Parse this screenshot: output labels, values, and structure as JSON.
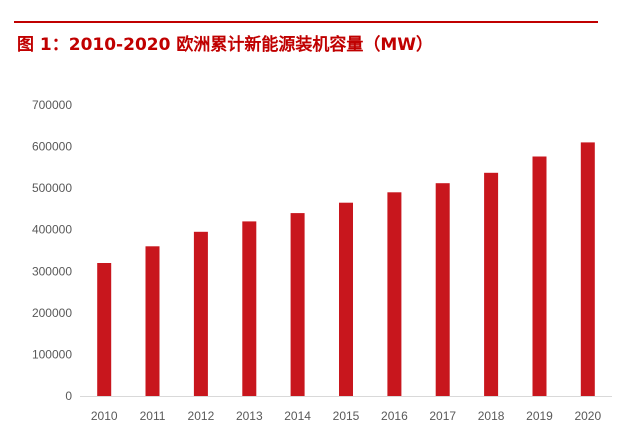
{
  "header": {
    "title": "图 1：2010-2020 欧洲累计新能源装机容量（MW）"
  },
  "colors": {
    "accent": "#c00000",
    "bar": "#c8161d",
    "axis": "#d9d9d9",
    "tick_text": "#595959"
  },
  "chart_data": {
    "type": "bar",
    "title": "图 1：2010-2020 欧洲累计新能源装机容量（MW）",
    "xlabel": "",
    "ylabel": "",
    "categories": [
      "2010",
      "2011",
      "2012",
      "2013",
      "2014",
      "2015",
      "2016",
      "2017",
      "2018",
      "2019",
      "2020"
    ],
    "series": [
      {
        "name": "欧洲累计新能源装机容量",
        "values": [
          320000,
          360000,
          395000,
          420000,
          440000,
          465000,
          490000,
          512000,
          537000,
          576000,
          610000
        ]
      }
    ],
    "ylim": [
      0,
      700000
    ],
    "yticks": [
      "0",
      "100000",
      "200000",
      "300000",
      "400000",
      "500000",
      "600000",
      "700000"
    ],
    "grid": false,
    "legend": "none"
  }
}
